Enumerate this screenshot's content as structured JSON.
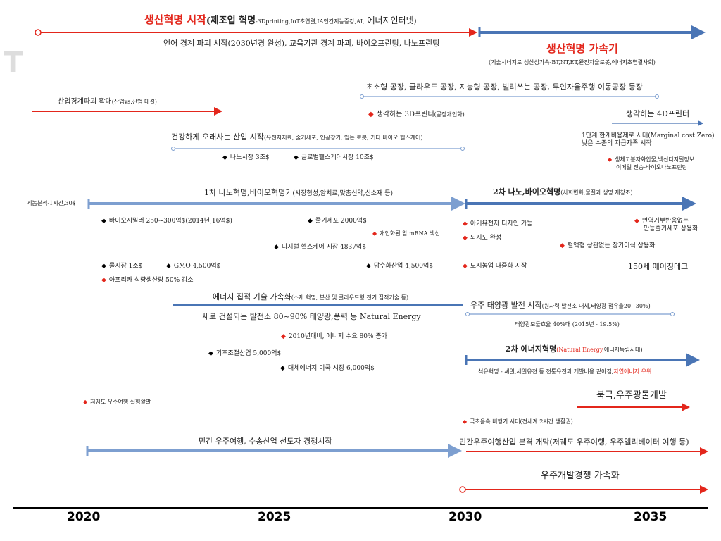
{
  "title": {
    "main": "생산혁명 시작",
    "paren_open": "(",
    "bold": "제조업 혁명",
    "detail": "-3Dprinting,IoT초연결,IA인간지능증강,AI,",
    "tail": " 에너지인터넷",
    "paren_close": ")"
  },
  "lang": "언어 경계 파괴 시작(2030년경 완성), 교육기관 경계 파괴, 바이오프린팅, 나노프린팅",
  "accel": {
    "title": "생산혁명 가속기",
    "sub": "(기술시너지로 생산성가속-BT,NT,ET,완전자율로봇,에너지초연결사회)"
  },
  "factory": "초소형 공장, 클라우드 공장, 지능형 공장, 빌려쓰는 공장, 무인자율주행 이동공장 등장",
  "printer3d": "생각하는 3D프린터",
  "printer3d_sub": "(공장개인화)",
  "printer4d": "생각하는 4D프린터",
  "industry_boundary": "산업경계파괴 확대",
  "industry_boundary_sub": "(산업vs.산업 대결)",
  "healthy": "건강하게 오래사는 산업 시작",
  "healthy_sub": "(유전자치료, 줄기세포, 인공장기, 입는 로봇, 기타 바이오 헬스케어)",
  "nano_market": "나노시장 3조$",
  "global_health": "글로벌헬스케어시장 10조$",
  "marginal1": "1단계 한계비용제로 시대(Marginal cost Zero)",
  "marginal2": "낮은 수준의 자급자족 시작",
  "eco1": "생체고분자화합물,백신디지털정보",
  "eco2": "이메일 전송-바이오나노프린팅",
  "genome": "게놈분석-1시간,30$",
  "nano1": "1차 나노혁명,바이오혁명기",
  "nano1_sub": "(시장형성,암치료,맞춤신약,신소재 등)",
  "nano2": "2차 나노,바이오혁명",
  "nano2_sub": "(사회변화,물질과 생명 재창조)",
  "biosimilar": "바이오시밀러 250~300억$(2014년,16억$)",
  "stemcell": "줄기세포 2000억$",
  "mrna": "개인화된 암 mRNA 백신",
  "digital_health": "디지털 헬스케어 시장 4837억$",
  "baby_design": "아기유전자 디자인 가능",
  "brainmap": "뇌지도 완성",
  "immune1": "면역거부반응없는",
  "immune2": "만능줄기세포 상용화",
  "bloodtype": "혈액형 상관없는 장기이식 상용화",
  "water": "물시장 1조$",
  "gmo": "GMO 4,500억$",
  "desal": "담수화산업 4,500억$",
  "urbanfarm": "도시농업 대중화 시작",
  "aging": "150세 에이징테크",
  "africa": "아프리카 식량생산량 50% 감소",
  "energy": "에너지 집적 기술 가속화",
  "energy_sub": "(소재 혁명, 분산 및 클라우드형 전기 집적기술 등)",
  "space_solar": "우주 태양광 발전 시작",
  "space_solar_sub": "(원자력 발전소 대체,태양광 점유율20~30%)",
  "new_plant": "새로 건설되는 발전소 80~90% 태양광,풍력 등 Natural Energy",
  "solar_eff": "태양광모듈효율 40%대 (2015년 - 19.5%)",
  "energy_demand": "2010년대비, 에너지 수요 80% 증가",
  "climate": "기후조절산업 5,000억$",
  "energy2": "2차 에너지혁명",
  "energy2_red": "(Natural Energy,",
  "energy2_rest": "에너지독립시대)",
  "fossil": "석유혁명 - 셰일,세일유전 등 전통유전과 개발비용 같아짐,",
  "fossil_red": "자연에너지 우위",
  "alt_energy": "대체에너지 미국 시장 6,000억$",
  "arctic": "북극,우주광물개발",
  "lowcost_space": "저궤도 우주여행 실험활발",
  "hypersonic": "극초음속 비행기 시대(전세계 2시간 생활권)",
  "private_space": "민간 우주여행, 수송산업 선도자 경쟁시작",
  "private_space2": "민간우주여행산업 본격 개막(저궤도 우주여행, 우주엘리베이터 여행 등)",
  "space_race": "우주개발경쟁 가속화",
  "years": [
    "2020",
    "2025",
    "2030",
    "2035"
  ],
  "colors": {
    "red": "#e3261b",
    "blue": "#4a75b5",
    "lightblue": "#7d9fd0"
  }
}
